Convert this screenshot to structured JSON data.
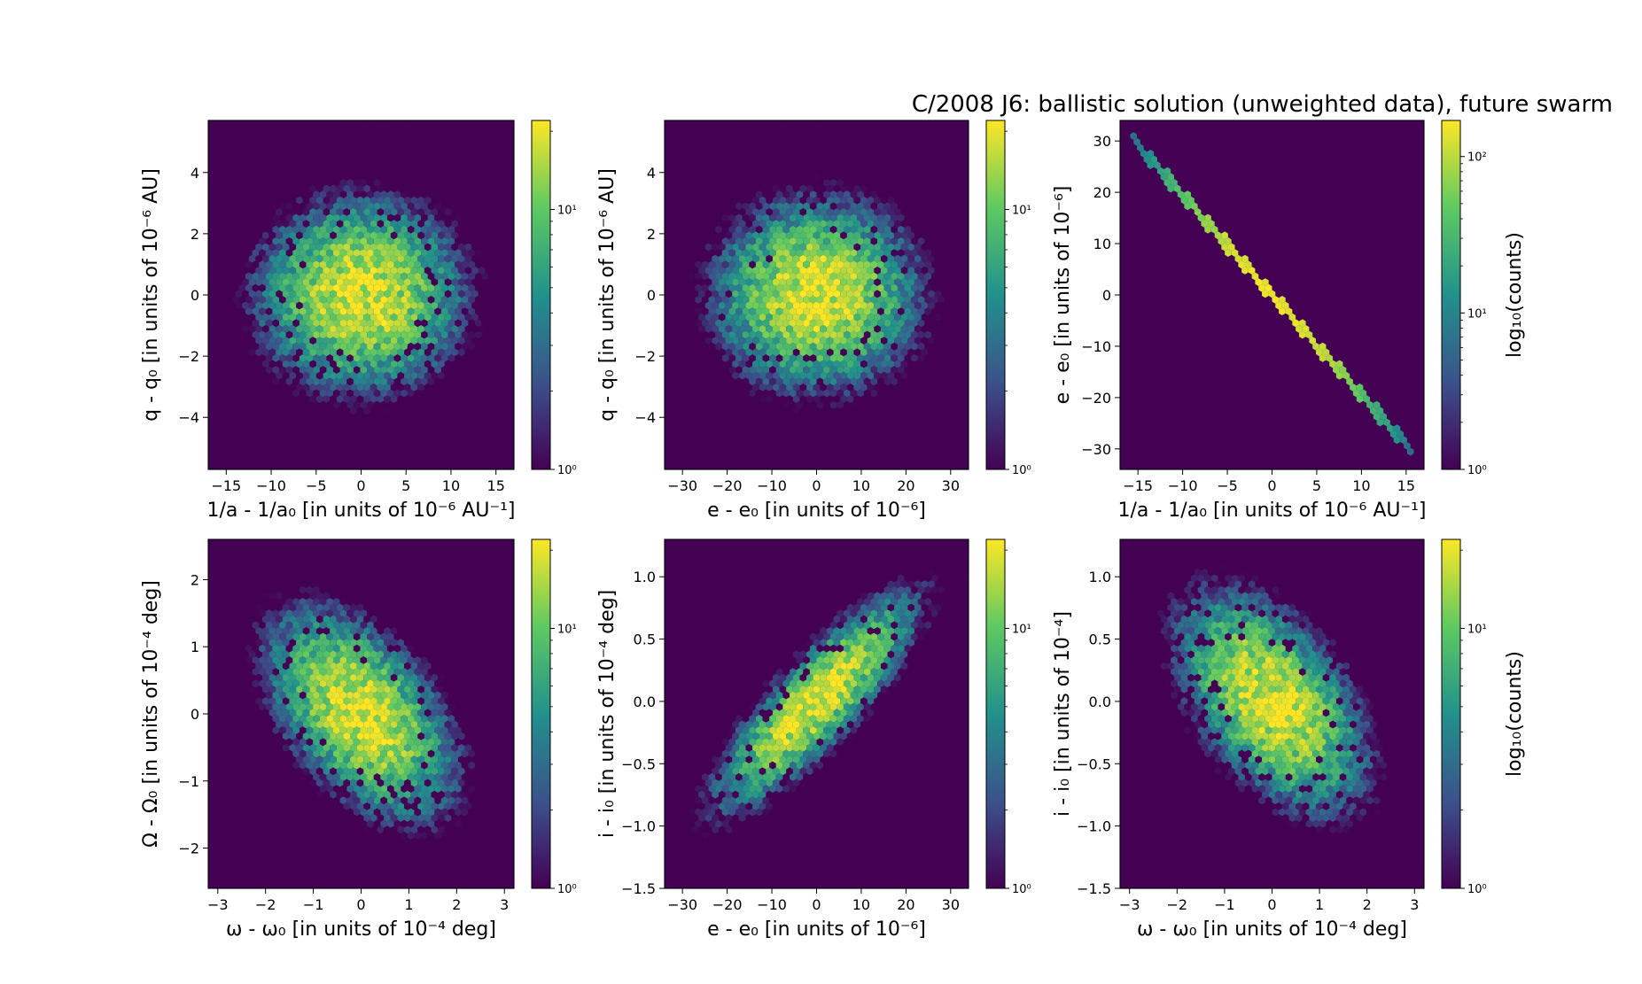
{
  "figure_title": "C/2008 J6: ballistic solution (unweighted data), future swarm",
  "colormap": [
    "#440154",
    "#3b528b",
    "#21918c",
    "#5ec962",
    "#fde725"
  ],
  "chart_data": [
    {
      "type": "heatmap",
      "subtype": "hexbin",
      "xlabel": "1/a - 1/a₀ [in units of 10⁻⁶ AU⁻¹]",
      "ylabel": "q - q₀ [in units of 10⁻⁶ AU]",
      "xlim": [
        -17,
        17
      ],
      "ylim": [
        -5.7,
        5.7
      ],
      "xticks": [
        -15,
        -10,
        -5,
        0,
        5,
        10,
        15
      ],
      "xtick_labels": [
        "−15",
        "−10",
        "−5",
        "0",
        "5",
        "10",
        "15"
      ],
      "yticks": [
        -4,
        -2,
        0,
        2,
        4
      ],
      "ytick_labels": [
        "−4",
        "−2",
        "0",
        "2",
        "4"
      ],
      "distribution": {
        "sx": 5.5,
        "sy": 1.5,
        "rho": 0.0
      },
      "colorbar": {
        "scale": "log",
        "max": 22,
        "tick_values": [
          1,
          10
        ],
        "tick_labels": [
          "10⁰",
          "10¹"
        ],
        "label": ""
      }
    },
    {
      "type": "heatmap",
      "subtype": "hexbin",
      "xlabel": "e - e₀ [in units of 10⁻⁶]",
      "ylabel": "q - q₀ [in units of 10⁻⁶ AU]",
      "xlim": [
        -34,
        34
      ],
      "ylim": [
        -5.7,
        5.7
      ],
      "xticks": [
        -30,
        -20,
        -10,
        0,
        10,
        20,
        30
      ],
      "xtick_labels": [
        "−30",
        "−20",
        "−10",
        "0",
        "10",
        "20",
        "30"
      ],
      "yticks": [
        -4,
        -2,
        0,
        2,
        4
      ],
      "ytick_labels": [
        "−4",
        "−2",
        "0",
        "2",
        "4"
      ],
      "distribution": {
        "sx": 11,
        "sy": 1.5,
        "rho": 0.0
      },
      "colorbar": {
        "scale": "log",
        "max": 22,
        "tick_values": [
          1,
          10
        ],
        "tick_labels": [
          "10⁰",
          "10¹"
        ],
        "label": ""
      }
    },
    {
      "type": "heatmap",
      "subtype": "hexbin",
      "xlabel": "1/a - 1/a₀ [in units of 10⁻⁶ AU⁻¹]",
      "ylabel": "e - e₀ [in units of 10⁻⁶]",
      "xlim": [
        -17,
        17
      ],
      "ylim": [
        -34,
        34
      ],
      "xticks": [
        -15,
        -10,
        -5,
        0,
        5,
        10,
        15
      ],
      "xtick_labels": [
        "−15",
        "−10",
        "−5",
        "0",
        "5",
        "10",
        "15"
      ],
      "yticks": [
        -30,
        -20,
        -10,
        0,
        10,
        20,
        30
      ],
      "ytick_labels": [
        "−30",
        "−20",
        "−10",
        "0",
        "10",
        "20",
        "30"
      ],
      "line": {
        "x_range": [
          -15.5,
          15.5
        ],
        "slope": -1.95,
        "peak": 170
      },
      "colorbar": {
        "scale": "log",
        "max": 170,
        "tick_values": [
          1,
          10,
          100
        ],
        "tick_labels": [
          "10⁰",
          "10¹",
          "10²"
        ],
        "label": "log₁₀(counts)"
      }
    },
    {
      "type": "heatmap",
      "subtype": "hexbin",
      "xlabel": "ω - ω₀ [in units of 10⁻⁴ deg]",
      "ylabel": "Ω - Ω₀ [in units of 10⁻⁴ deg]",
      "xlim": [
        -3.2,
        3.2
      ],
      "ylim": [
        -2.6,
        2.6
      ],
      "xticks": [
        -3,
        -2,
        -1,
        0,
        1,
        2,
        3
      ],
      "xtick_labels": [
        "−3",
        "−2",
        "−1",
        "0",
        "1",
        "2",
        "3"
      ],
      "yticks": [
        -2,
        -1,
        0,
        1,
        2
      ],
      "ytick_labels": [
        "−2",
        "−1",
        "0",
        "1",
        "2"
      ],
      "distribution": {
        "sx": 0.95,
        "sy": 0.75,
        "rho": -0.5
      },
      "colorbar": {
        "scale": "log",
        "max": 22,
        "tick_values": [
          1,
          10
        ],
        "tick_labels": [
          "10⁰",
          "10¹"
        ],
        "label": ""
      }
    },
    {
      "type": "heatmap",
      "subtype": "hexbin",
      "xlabel": "e - e₀ [in units of 10⁻⁶]",
      "ylabel": "i - i₀ [in units of 10⁻⁴ deg]",
      "xlim": [
        -34,
        34
      ],
      "ylim": [
        -1.5,
        1.3
      ],
      "xticks": [
        -30,
        -20,
        -10,
        0,
        10,
        20,
        30
      ],
      "xtick_labels": [
        "−30",
        "−20",
        "−10",
        "0",
        "10",
        "20",
        "30"
      ],
      "yticks": [
        -1.5,
        -1.0,
        -0.5,
        0.0,
        0.5,
        1.0
      ],
      "ytick_labels": [
        "−1.5",
        "−1.0",
        "−0.5",
        "0.0",
        "0.5",
        "1.0"
      ],
      "distribution": {
        "sx": 11,
        "sy": 0.42,
        "rho": 0.85
      },
      "colorbar": {
        "scale": "log",
        "max": 22,
        "tick_values": [
          1,
          10
        ],
        "tick_labels": [
          "10⁰",
          "10¹"
        ],
        "label": ""
      }
    },
    {
      "type": "heatmap",
      "subtype": "hexbin",
      "xlabel": "ω - ω₀ [in units of 10⁻⁴ deg]",
      "ylabel": "i - i₀ [in units of 10⁻⁴]",
      "xlim": [
        -3.2,
        3.2
      ],
      "ylim": [
        -1.5,
        1.3
      ],
      "xticks": [
        -3,
        -2,
        -1,
        0,
        1,
        2,
        3
      ],
      "xtick_labels": [
        "−3",
        "−2",
        "−1",
        "0",
        "1",
        "2",
        "3"
      ],
      "yticks": [
        -1.5,
        -1.0,
        -0.5,
        0.0,
        0.5,
        1.0
      ],
      "ytick_labels": [
        "−1.5",
        "−1.0",
        "−0.5",
        "0.0",
        "0.5",
        "1.0"
      ],
      "distribution": {
        "sx": 0.95,
        "sy": 0.42,
        "rho": -0.5
      },
      "colorbar": {
        "scale": "log",
        "max": 22,
        "tick_values": [
          1,
          10
        ],
        "tick_labels": [
          "10⁰",
          "10¹"
        ],
        "label": "log₁₀(counts)"
      }
    }
  ]
}
